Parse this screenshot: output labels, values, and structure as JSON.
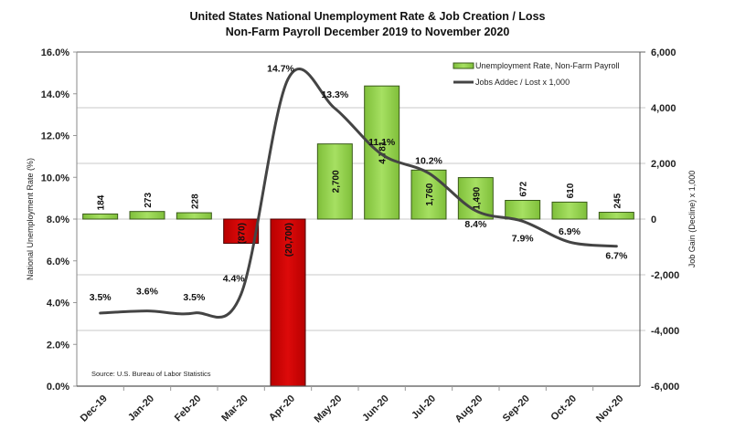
{
  "chart_data": {
    "type": "bar+line",
    "title": "United States National Unemployment Rate & Job Creation / Loss",
    "subtitle": "Non-Farm Payroll December 2019 to November 2020",
    "categories": [
      "Dec-19",
      "Jan-20",
      "Feb-20",
      "Mar-20",
      "Apr-20",
      "May-20",
      "Jun-20",
      "Jul-20",
      "Aug-20",
      "Sep-20",
      "Oct-20",
      "Nov-20"
    ],
    "series": [
      {
        "name": "Jobs Added / Lost x 1,000",
        "type": "bar",
        "axis": "right",
        "values": [
          184,
          273,
          228,
          -870,
          -20700,
          2700,
          4781,
          1760,
          1490,
          672,
          610,
          245
        ],
        "labels": [
          "184",
          "273",
          "228",
          "(870)",
          "(20,700)",
          "2,700",
          "4,781",
          "1,760",
          "1,490",
          "672",
          "610",
          "245"
        ],
        "positive_color": "#92d050",
        "negative_color": "#cc0000"
      },
      {
        "name": "Unemployment Rate, Non-Farm Payroll",
        "type": "line",
        "axis": "left",
        "values": [
          3.5,
          3.6,
          3.5,
          4.4,
          14.7,
          13.3,
          11.1,
          10.2,
          8.4,
          7.9,
          6.9,
          6.7
        ],
        "labels": [
          "3.5%",
          "3.6%",
          "3.5%",
          "4.4%",
          "14.7%",
          "13.3%",
          "11.1%",
          "10.2%",
          "8.4%",
          "7.9%",
          "6.9%",
          "6.7%"
        ],
        "color": "#444444"
      }
    ],
    "legend": {
      "position": "top-right",
      "entries": [
        "Unemployment Rate, Non-Farm Payroll",
        "Jobs Addec / Lost x 1,000"
      ]
    },
    "ylabel_left": "National Unemployment Rate (%)",
    "ylabel_right": "Job Gain (Decline) x 1,000",
    "ylim_left": [
      0,
      16
    ],
    "ylim_right": [
      -6000,
      6000
    ],
    "yticks_left": [
      "0.0%",
      "2.0%",
      "4.0%",
      "6.0%",
      "8.0%",
      "10.0%",
      "12.0%",
      "14.0%",
      "16.0%"
    ],
    "yticks_right": [
      "-6,000",
      "-4,000",
      "-2,000",
      "0",
      "2,000",
      "4,000",
      "6,000"
    ],
    "grid": "horizontal (right axis)",
    "annotation": "Source:  U.S. Bureau of Labor Statistics"
  }
}
